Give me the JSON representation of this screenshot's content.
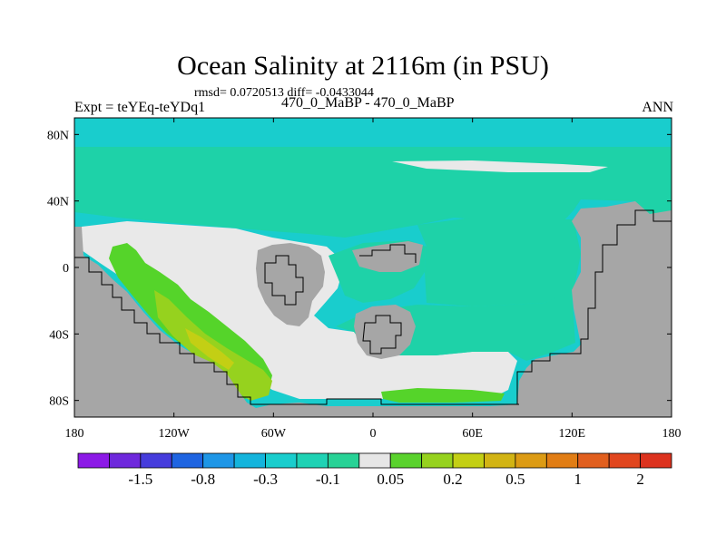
{
  "title": "Ocean Salinity at 2116m (in PSU)",
  "stats": "rmsd= 0.0720513 diff= -0.0433044",
  "case_label": "470_0_MaBP - 470_0_MaBP",
  "expt_label": "Expt = teYEq-teYDq1",
  "season": "ANN",
  "colors": {
    "land": "#a6a6a6",
    "ocean_cyan": "#19cdcd",
    "ocean_teal": "#1ed2a8",
    "ocean_near_zero": "#e9e9e9",
    "green": "#55d42a",
    "yellow_green": "#96d21e",
    "olive": "#c3cf14"
  },
  "chart_data": {
    "type": "map",
    "variable": "Ocean Salinity difference",
    "units": "PSU",
    "depth": "2116m",
    "rmsd": 0.0720513,
    "diff": -0.0433044,
    "x_ticks": [
      "180",
      "120W",
      "60W",
      "0",
      "60E",
      "120E",
      "180"
    ],
    "x_values": [
      -180,
      -120,
      -60,
      0,
      60,
      120,
      180
    ],
    "y_ticks": [
      "80N",
      "40N",
      "0",
      "40S",
      "80S"
    ],
    "y_values": [
      80,
      40,
      0,
      -40,
      -80
    ],
    "xlim": [
      -180,
      180
    ],
    "ylim": [
      -90,
      90
    ],
    "colorbar": {
      "labels": [
        "-1.5",
        "-0.8",
        "-0.3",
        "-0.1",
        "0.05",
        "0.2",
        "0.5",
        "1",
        "2"
      ],
      "colors": [
        "#8c19e6",
        "#6e28dc",
        "#463cdc",
        "#1e64e1",
        "#1e96e6",
        "#14b4dc",
        "#19cdcd",
        "#1ed2b4",
        "#28d296",
        "#e6e6e6",
        "#5ad22d",
        "#96d21e",
        "#c3cf14",
        "#d2b414",
        "#dc9b14",
        "#e17d14",
        "#e15f1e",
        "#e1461e",
        "#dc321e"
      ]
    }
  }
}
